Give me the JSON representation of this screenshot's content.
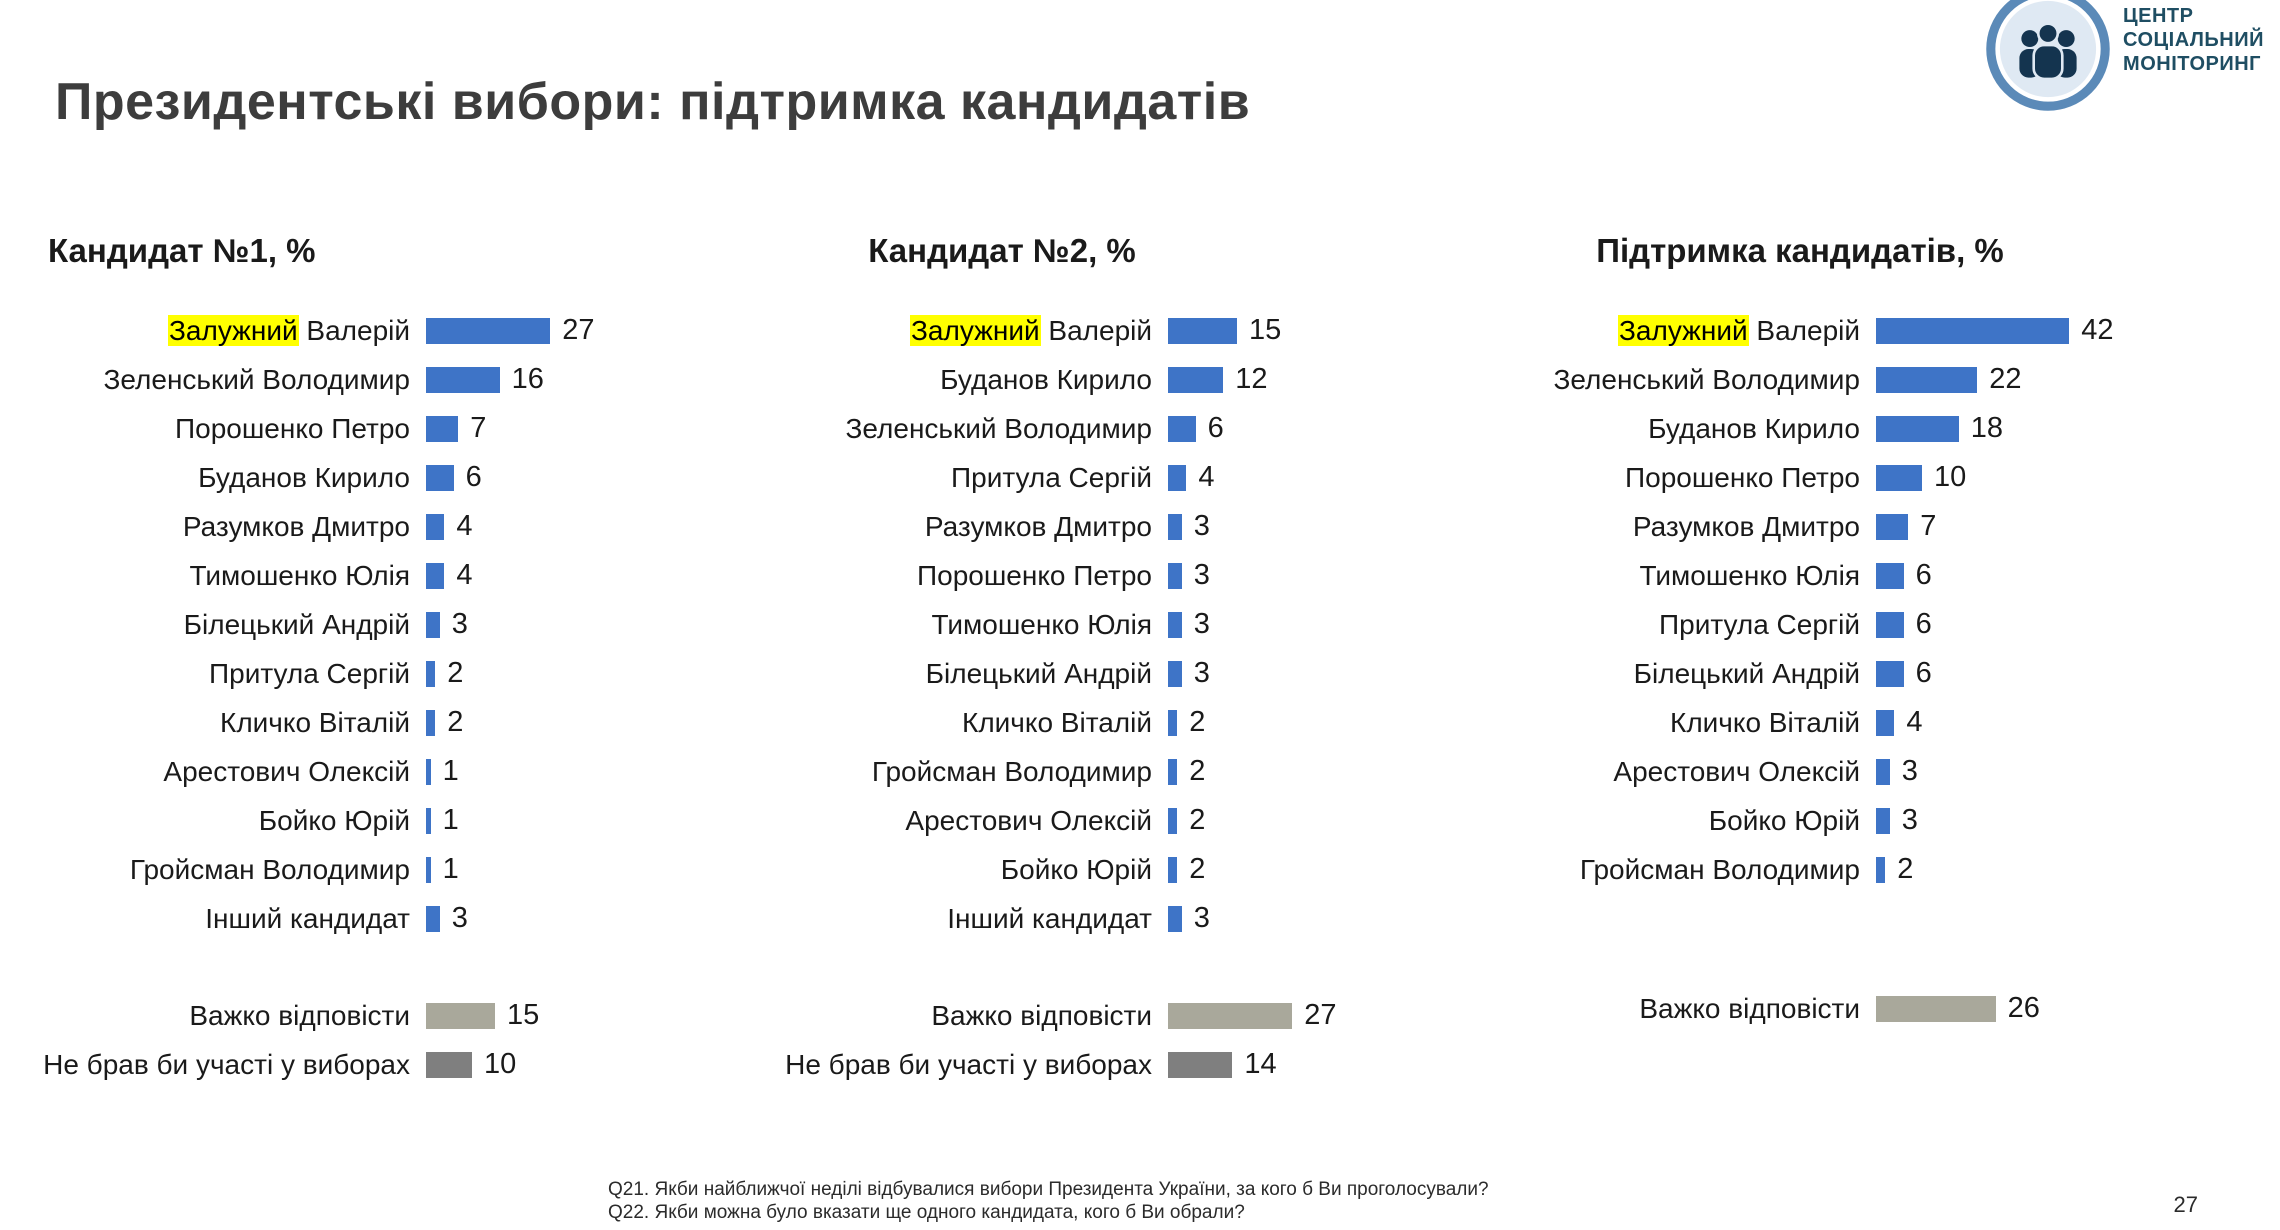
{
  "page": {
    "title": "Президентські вибори: підтримка кандидатів",
    "page_number": "27",
    "footer_lines": [
      "Q21. Якби найближчої неділі відбувалися вибори Президента України, за кого б Ви проголосували?",
      "Q22. Якби можна було вказати ще одного кандидата, кого б Ви обрали?"
    ],
    "logo": {
      "lines": [
        "ЦЕНТР",
        "СОЦІАЛЬНИЙ",
        "МОНІТОРИНГ"
      ]
    }
  },
  "colors": {
    "bar_blue": "#3e74c7",
    "bar_gray": "#a9a89b",
    "bar_darkgray": "#7f7f7f",
    "highlight": "#ffff00"
  },
  "chart_data": [
    {
      "type": "bar",
      "orientation": "horizontal",
      "unit": "%",
      "title": "Кандидат №1, %",
      "rows": [
        {
          "label": "Залужний Валерій",
          "highlight": "Залужний",
          "value": 27
        },
        {
          "label": "Зеленський Володимир",
          "value": 16
        },
        {
          "label": "Порошенко Петро",
          "value": 7
        },
        {
          "label": "Буданов Кирило",
          "value": 6
        },
        {
          "label": "Разумков Дмитро",
          "value": 4
        },
        {
          "label": "Тимошенко Юлія",
          "value": 4
        },
        {
          "label": "Білецький Андрій",
          "value": 3
        },
        {
          "label": "Притула Сергій",
          "value": 2
        },
        {
          "label": "Кличко Віталій",
          "value": 2
        },
        {
          "label": "Арестович Олексій",
          "value": 1
        },
        {
          "label": "Бойко Юрій",
          "value": 1
        },
        {
          "label": "Гройсман Володимир",
          "value": 1
        },
        {
          "label": "Інший кандидат",
          "value": 3
        }
      ],
      "footer_rows": [
        {
          "label": "Важко відповісти",
          "value": 15,
          "color": "gray"
        },
        {
          "label": "Не брав би участі у виборах",
          "value": 10,
          "color": "darkgray"
        }
      ]
    },
    {
      "type": "bar",
      "orientation": "horizontal",
      "unit": "%",
      "title": "Кандидат №2, %",
      "rows": [
        {
          "label": "Залужний Валерій",
          "highlight": "Залужний",
          "value": 15
        },
        {
          "label": "Буданов Кирило",
          "value": 12
        },
        {
          "label": "Зеленський Володимир",
          "value": 6
        },
        {
          "label": "Притула Сергій",
          "value": 4
        },
        {
          "label": "Разумков Дмитро",
          "value": 3
        },
        {
          "label": "Порошенко Петро",
          "value": 3
        },
        {
          "label": "Тимошенко Юлія",
          "value": 3
        },
        {
          "label": "Білецький Андрій",
          "value": 3
        },
        {
          "label": "Кличко Віталій",
          "value": 2
        },
        {
          "label": "Гройсман Володимир",
          "value": 2
        },
        {
          "label": "Арестович Олексій",
          "value": 2
        },
        {
          "label": "Бойко Юрій",
          "value": 2
        },
        {
          "label": "Інший кандидат",
          "value": 3
        }
      ],
      "footer_rows": [
        {
          "label": "Важко відповісти",
          "value": 27,
          "color": "gray"
        },
        {
          "label": "Не брав би участі у виборах",
          "value": 14,
          "color": "darkgray"
        }
      ]
    },
    {
      "type": "bar",
      "orientation": "horizontal",
      "unit": "%",
      "title": "Підтримка кандидатів, %",
      "rows": [
        {
          "label": "Залужний Валерій",
          "highlight": "Залужний",
          "value": 42
        },
        {
          "label": "Зеленський Володимир",
          "value": 22
        },
        {
          "label": "Буданов Кирило",
          "value": 18
        },
        {
          "label": "Порошенко Петро",
          "value": 10
        },
        {
          "label": "Разумков Дмитро",
          "value": 7
        },
        {
          "label": "Тимошенко Юлія",
          "value": 6
        },
        {
          "label": "Притула Сергій",
          "value": 6
        },
        {
          "label": "Білецький Андрій",
          "value": 6
        },
        {
          "label": "Кличко Віталій",
          "value": 4
        },
        {
          "label": "Арестович Олексій",
          "value": 3
        },
        {
          "label": "Бойко Юрій",
          "value": 3
        },
        {
          "label": "Гройсман Володимир",
          "value": 2
        }
      ],
      "footer_rows": [
        {
          "label": "Важко відповісти",
          "value": 26,
          "color": "gray"
        }
      ]
    }
  ]
}
